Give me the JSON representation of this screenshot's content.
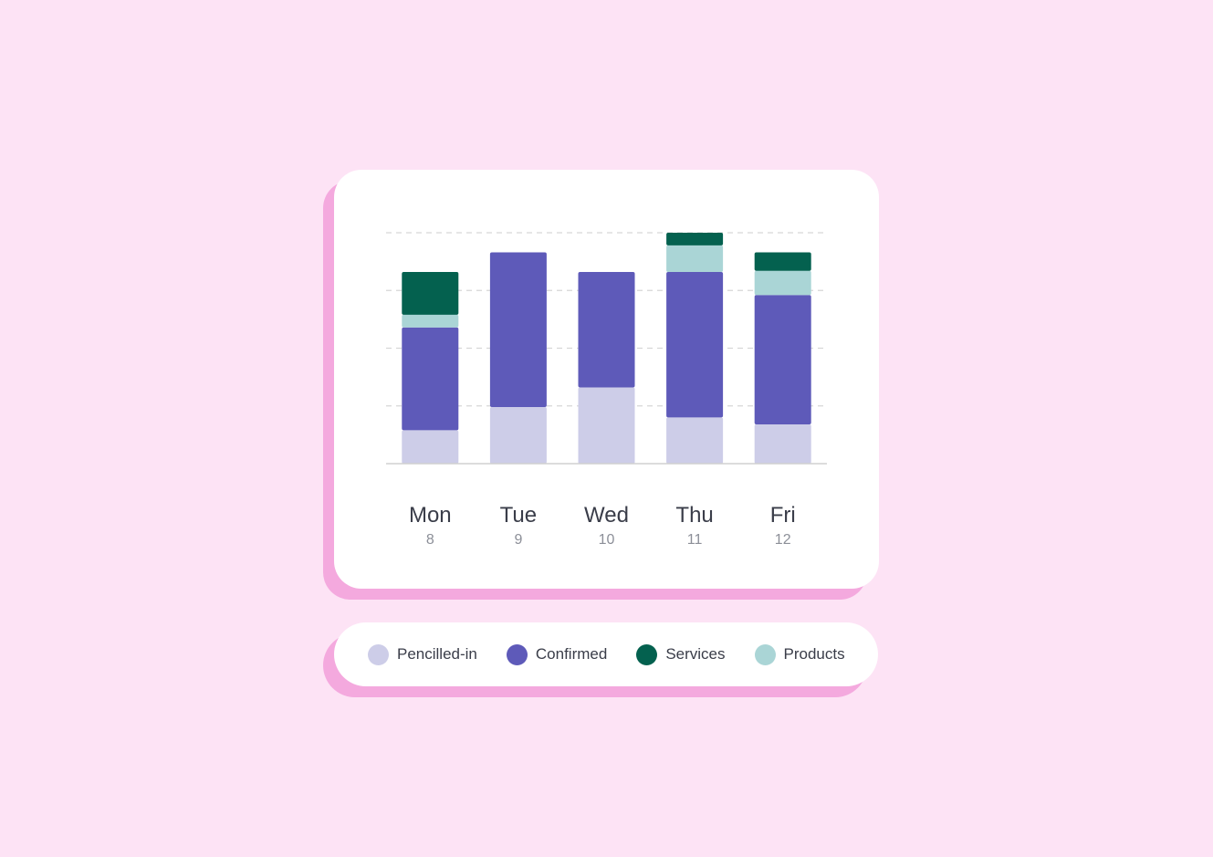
{
  "chart_data": {
    "type": "bar",
    "stacked": true,
    "categories": [
      "Mon",
      "Tue",
      "Wed",
      "Thu",
      "Fri"
    ],
    "sublabels": [
      "8",
      "9",
      "10",
      "11",
      "12"
    ],
    "ylim": [
      0,
      100
    ],
    "grid": true,
    "series": [
      {
        "name": "Pencilled-in",
        "color": "#cdcde8",
        "values": [
          14.5,
          24.5,
          33,
          20,
          17
        ]
      },
      {
        "name": "Confirmed",
        "color": "#5e5ab9",
        "values": [
          44.5,
          67,
          50,
          63,
          56
        ]
      },
      {
        "name": "Products",
        "color": "#aad5d6",
        "values": [
          5.5,
          0,
          0,
          11.5,
          10.5
        ]
      },
      {
        "name": "Services",
        "color": "#04614f",
        "values": [
          18.5,
          0,
          0,
          5.5,
          8
        ]
      }
    ],
    "legend_order": [
      "Pencilled-in",
      "Confirmed",
      "Services",
      "Products"
    ]
  }
}
